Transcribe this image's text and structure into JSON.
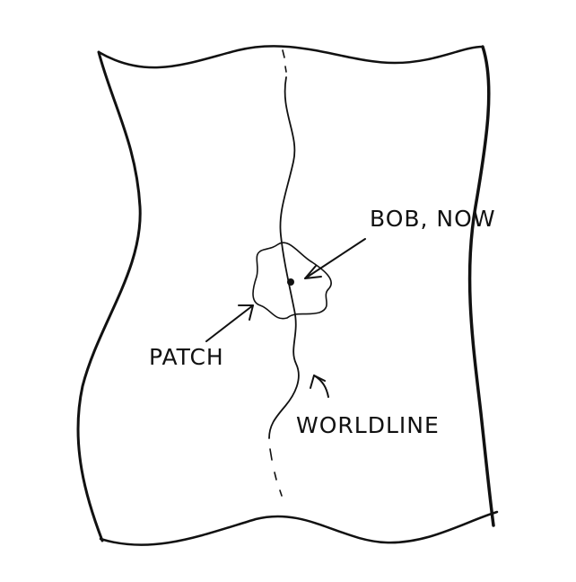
{
  "labels": {
    "bob_now": "BOB, NOW",
    "patch": "PATCH",
    "worldline": "WORLDLINE"
  },
  "colors": {
    "ink": "#111111",
    "paper": "#ffffff"
  }
}
